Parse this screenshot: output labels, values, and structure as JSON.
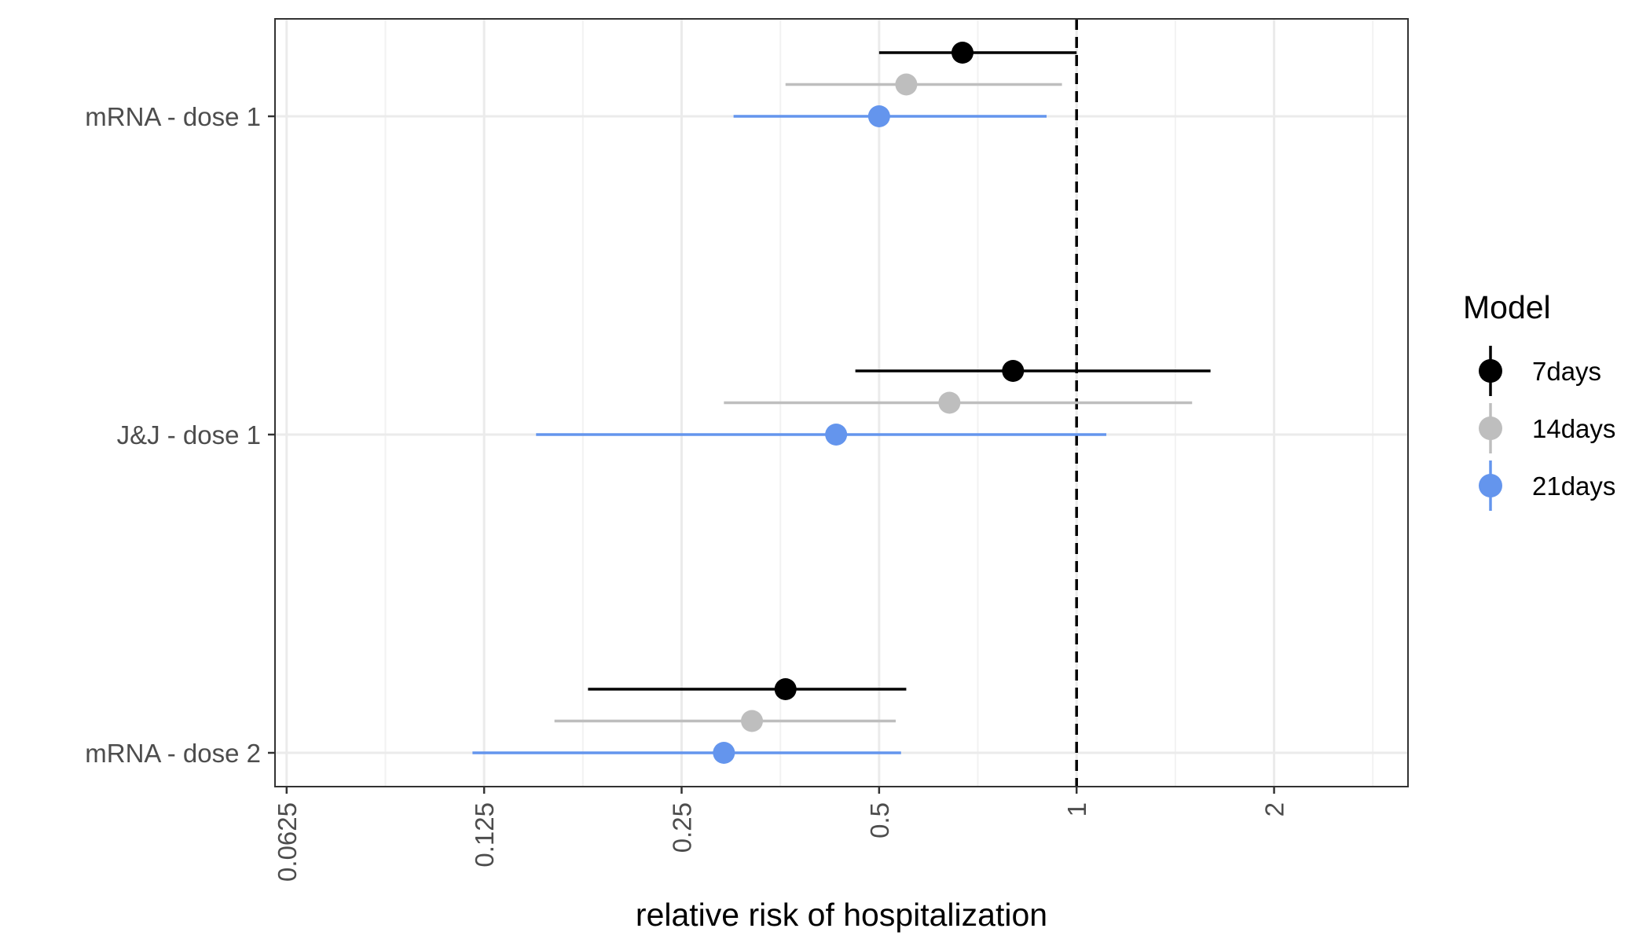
{
  "chart_data": {
    "type": "forest",
    "xlabel": "relative risk of hospitalization",
    "ylabel": "",
    "x_scale": "log2",
    "xlim": [
      0.06,
      3.2
    ],
    "x_ticks": [
      0.0625,
      0.125,
      0.25,
      0.5,
      1,
      2
    ],
    "x_tick_labels": [
      "0.0625",
      "0.125",
      "0.25",
      "0.5",
      "1",
      "2"
    ],
    "categories": [
      "mRNA - dose 1",
      "J&J - dose 1",
      "mRNA - dose 2"
    ],
    "reference_line": {
      "x": 1,
      "style": "dashed"
    },
    "grid": true,
    "legend": {
      "title": "Model",
      "placement": "right"
    },
    "series": [
      {
        "name": "7days",
        "color": "#000000",
        "points": [
          {
            "category": "mRNA - dose 1",
            "estimate": 0.67,
            "lower": 0.5,
            "upper": 1.0
          },
          {
            "category": "J&J - dose 1",
            "estimate": 0.8,
            "lower": 0.46,
            "upper": 1.6
          },
          {
            "category": "mRNA - dose 2",
            "estimate": 0.36,
            "lower": 0.18,
            "upper": 0.55
          }
        ]
      },
      {
        "name": "14days",
        "color": "#bebebe",
        "points": [
          {
            "category": "mRNA - dose 1",
            "estimate": 0.55,
            "lower": 0.36,
            "upper": 0.95
          },
          {
            "category": "J&J - dose 1",
            "estimate": 0.64,
            "lower": 0.29,
            "upper": 1.5
          },
          {
            "category": "mRNA - dose 2",
            "estimate": 0.32,
            "lower": 0.16,
            "upper": 0.53
          }
        ]
      },
      {
        "name": "21days",
        "color": "#6495ed",
        "points": [
          {
            "category": "mRNA - dose 1",
            "estimate": 0.5,
            "lower": 0.3,
            "upper": 0.9
          },
          {
            "category": "J&J - dose 1",
            "estimate": 0.43,
            "lower": 0.15,
            "upper": 1.11
          },
          {
            "category": "mRNA - dose 2",
            "estimate": 0.29,
            "lower": 0.12,
            "upper": 0.54
          }
        ]
      }
    ]
  }
}
